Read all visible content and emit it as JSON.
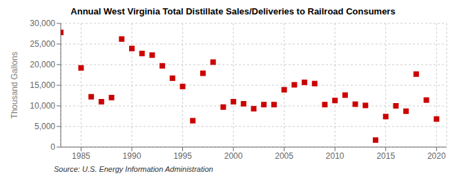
{
  "chart_data": {
    "type": "scatter",
    "title": "Annual West Virginia Total Distillate Sales/Deliveries to Railroad Consumers",
    "ylabel": "Thousand Gallons",
    "source": "Source: U.S. Energy Information Administration",
    "x": [
      1983,
      1985,
      1986,
      1987,
      1988,
      1989,
      1990,
      1991,
      1992,
      1993,
      1994,
      1995,
      1996,
      1997,
      1998,
      1999,
      2000,
      2001,
      2002,
      2003,
      2004,
      2005,
      2006,
      2007,
      2008,
      2009,
      2010,
      2011,
      2012,
      2013,
      2014,
      2015,
      2016,
      2017,
      2018,
      2019,
      2020
    ],
    "values": [
      27800,
      19200,
      12200,
      11000,
      12000,
      26200,
      23900,
      22700,
      22300,
      19700,
      16700,
      14700,
      6400,
      17900,
      20600,
      9700,
      11000,
      10500,
      9300,
      10300,
      10300,
      13900,
      15100,
      15700,
      15400,
      10300,
      11300,
      12600,
      10400,
      10100,
      1700,
      7400,
      10000,
      8700,
      17700,
      11400,
      6800
    ],
    "color": "#cc0000",
    "marker": "square",
    "grid": true,
    "xlim": [
      1983,
      2021
    ],
    "ylim": [
      0,
      30000
    ],
    "xticks": [
      1985,
      1990,
      1995,
      2000,
      2005,
      2010,
      2015,
      2020
    ],
    "yticks": [
      0,
      {
        "value": 5000,
        "label": "5,000"
      },
      {
        "value": 10000,
        "label": "10,000"
      },
      {
        "value": 15000,
        "label": "15,000"
      },
      {
        "value": 20000,
        "label": "20,000"
      },
      {
        "value": 25000,
        "label": "25,000"
      },
      {
        "value": 30000,
        "label": "30,000"
      }
    ]
  }
}
